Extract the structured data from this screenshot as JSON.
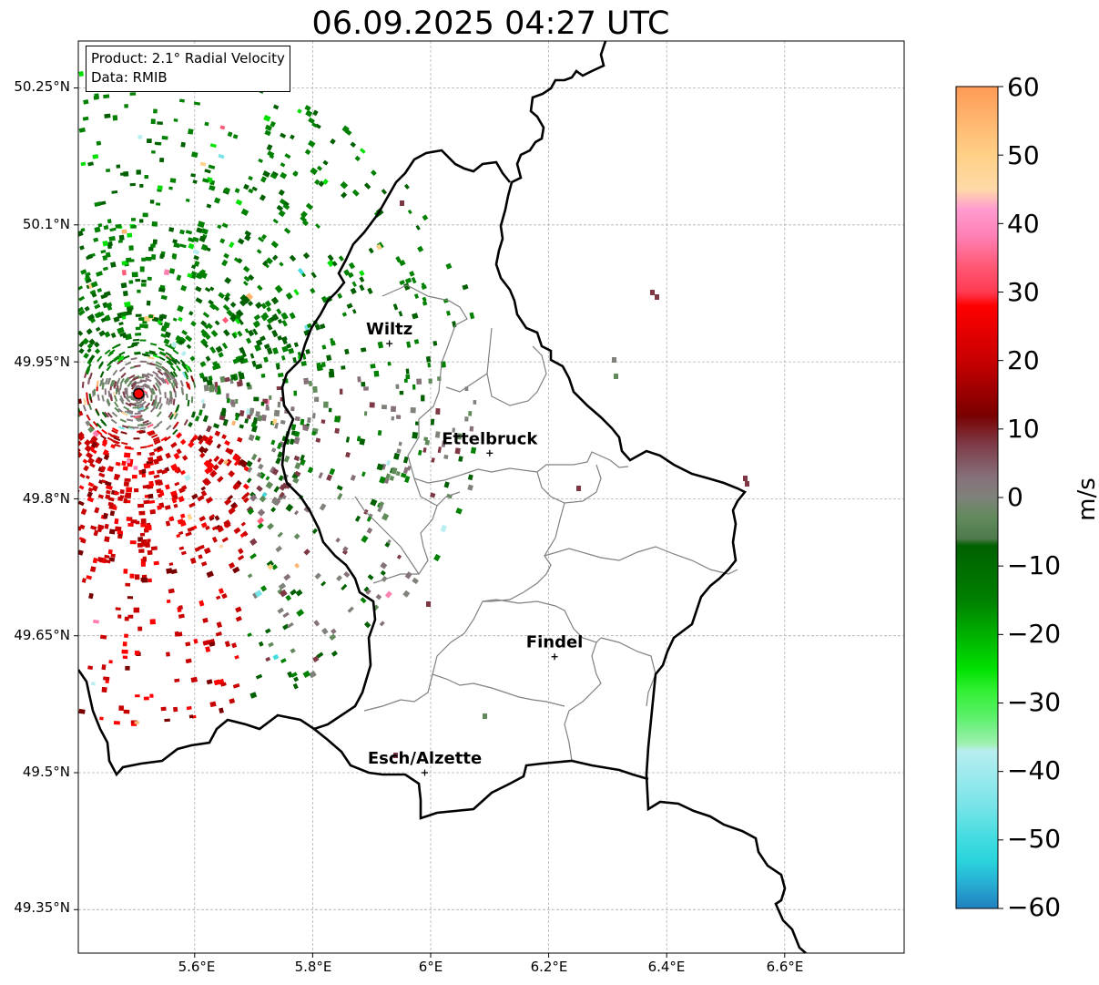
{
  "title": "06.09.2025 04:27 UTC",
  "info": {
    "product": "Product: 2.1° Radial Velocity",
    "data": "Data: RMIB"
  },
  "lat_labels": [
    "50.25°N",
    "50.1°N",
    "49.95°N",
    "49.8°N",
    "49.65°N",
    "49.5°N",
    "49.35°N"
  ],
  "lon_labels": [
    "5.6°E",
    "5.8°E",
    "6°E",
    "6.2°E",
    "6.4°E",
    "6.6°E"
  ],
  "cities": [
    {
      "name": "Wiltz",
      "lon": 5.93,
      "lat": 49.97
    },
    {
      "name": "Ettelbruck",
      "lon": 6.1,
      "lat": 49.85
    },
    {
      "name": "Findel",
      "lon": 6.21,
      "lat": 49.627
    },
    {
      "name": "Esch/Alzette",
      "lon": 5.99,
      "lat": 49.5
    }
  ],
  "radar_site": {
    "lon": 5.505,
    "lat": 49.915
  },
  "colorbar": {
    "label": "m/s",
    "min": -60,
    "max": 60,
    "ticks": [
      "60",
      "50",
      "40",
      "30",
      "20",
      "10",
      "0",
      "−10",
      "−20",
      "−30",
      "−40",
      "−50",
      "−60"
    ],
    "stops": [
      {
        "v": 60,
        "c": "#ff9a55"
      },
      {
        "v": 55,
        "c": "#ffb66f"
      },
      {
        "v": 50,
        "c": "#ffd085"
      },
      {
        "v": 45,
        "c": "#ffd9a8"
      },
      {
        "v": 42,
        "c": "#ff9ad0"
      },
      {
        "v": 38,
        "c": "#ff7fb2"
      },
      {
        "v": 34,
        "c": "#ff5a78"
      },
      {
        "v": 30,
        "c": "#ff3b52"
      },
      {
        "v": 28,
        "c": "#ff0000"
      },
      {
        "v": 20,
        "c": "#c80000"
      },
      {
        "v": 12,
        "c": "#7a0000"
      },
      {
        "v": 8,
        "c": "#7d3844"
      },
      {
        "v": 3,
        "c": "#86707a"
      },
      {
        "v": 0,
        "c": "#7f827a"
      },
      {
        "v": -3,
        "c": "#608a5a"
      },
      {
        "v": -6,
        "c": "#4f7a4d"
      },
      {
        "v": -7,
        "c": "#006000"
      },
      {
        "v": -15,
        "c": "#008000"
      },
      {
        "v": -25,
        "c": "#00e000"
      },
      {
        "v": -28,
        "c": "#30f030"
      },
      {
        "v": -32,
        "c": "#5af06a"
      },
      {
        "v": -36,
        "c": "#a0f0b0"
      },
      {
        "v": -37,
        "c": "#b8eef0"
      },
      {
        "v": -45,
        "c": "#78e4e8"
      },
      {
        "v": -50,
        "c": "#40dce0"
      },
      {
        "v": -53,
        "c": "#2ad4dc"
      },
      {
        "v": -56,
        "c": "#28b2d4"
      },
      {
        "v": -60,
        "c": "#2080c0"
      }
    ]
  },
  "colors": {
    "border": "#000000",
    "canton_lines": "#808080",
    "grid": "#b0b0b0",
    "radar_site": "#ff0000"
  }
}
